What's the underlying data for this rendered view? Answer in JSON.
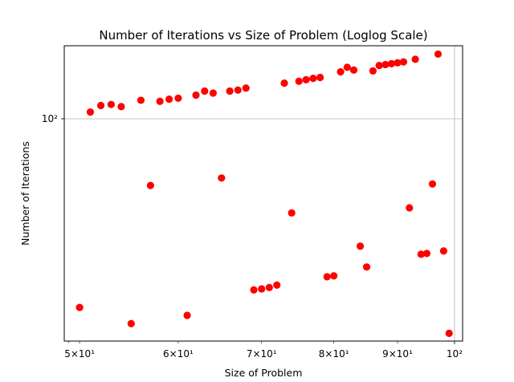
{
  "chart_data": {
    "type": "scatter",
    "title": "Number of Iterations vs Size of Problem (Loglog Scale)",
    "xlabel": "Size of Problem",
    "ylabel": "Number of Iterations",
    "xscale": "log",
    "yscale": "log",
    "xlim": [
      48.6,
      101.5
    ],
    "ylim": [
      37.5,
      138
    ],
    "grid": "on",
    "marker_color": "#ff0000",
    "x_ticks": [
      {
        "value": 50,
        "label": "5×10¹"
      },
      {
        "value": 60,
        "label": "6×10¹"
      },
      {
        "value": 70,
        "label": "7×10¹"
      },
      {
        "value": 80,
        "label": "8×10¹"
      },
      {
        "value": 90,
        "label": "9×10¹"
      },
      {
        "value": 100,
        "label": "10²"
      }
    ],
    "y_ticks": [
      {
        "value": 100,
        "label": "10²"
      }
    ],
    "x": [
      50,
      51,
      52,
      53,
      54,
      55,
      56,
      57,
      58,
      59,
      60,
      61,
      62,
      63,
      64,
      65,
      66,
      67,
      68,
      69,
      70,
      71,
      72,
      73,
      74,
      75,
      76,
      77,
      78,
      79,
      80,
      81,
      82,
      83,
      84,
      85,
      86,
      87,
      88,
      89,
      90,
      91,
      92,
      93,
      94,
      95,
      96,
      97,
      98,
      99
    ],
    "y": [
      43.5,
      103,
      106,
      106.5,
      105.5,
      40.5,
      108.5,
      74.5,
      108,
      109,
      109.5,
      42,
      111,
      113,
      112,
      77,
      113,
      113.5,
      114.5,
      47,
      47.2,
      47.5,
      48,
      117,
      66,
      118,
      118.8,
      119.5,
      120,
      49.8,
      50,
      123,
      125.5,
      124,
      57,
      52,
      123.5,
      126.5,
      127,
      127.5,
      128,
      128.5,
      67.5,
      130,
      55,
      55.2,
      75,
      133,
      55.8,
      38.8
    ]
  }
}
